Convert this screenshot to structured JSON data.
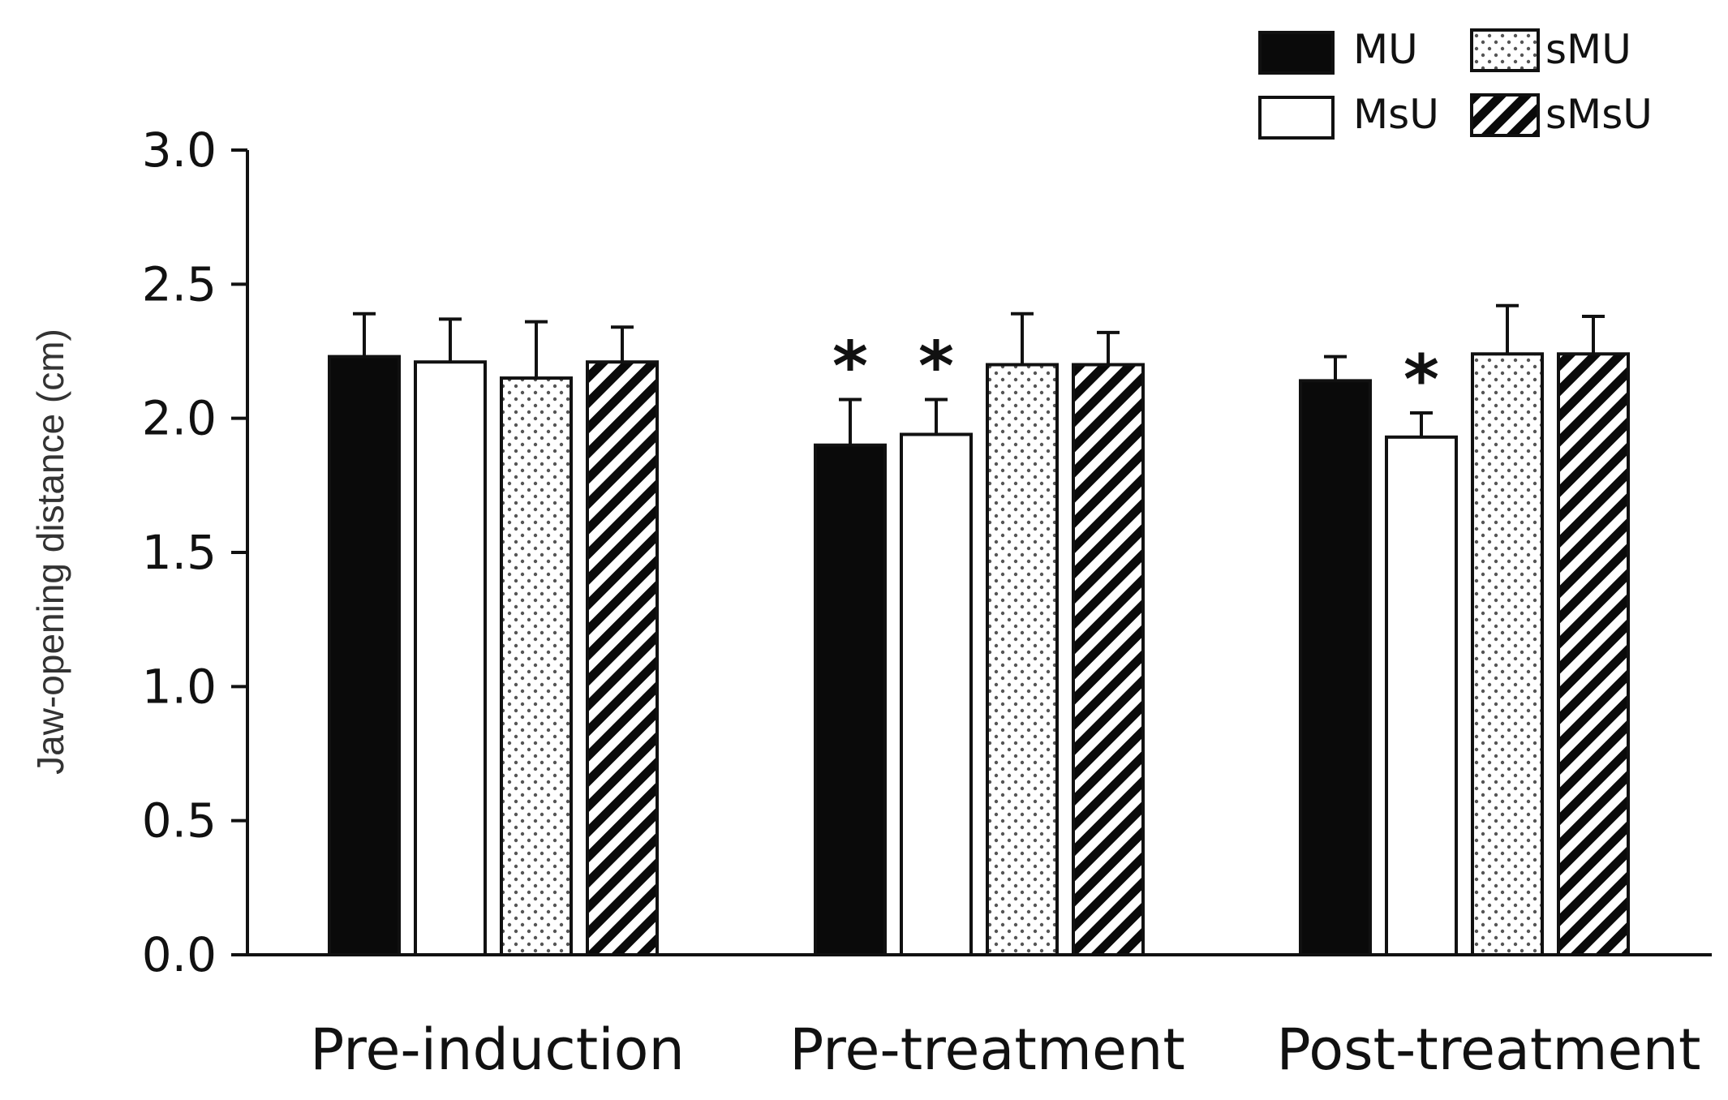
{
  "chart_data": {
    "type": "bar",
    "title": "",
    "xlabel": "",
    "ylabel": "Jaw-opening distance (cm)",
    "ylim": [
      0,
      3.0
    ],
    "yticks": [
      0.0,
      0.5,
      1.0,
      1.5,
      2.0,
      2.5,
      3.0
    ],
    "ytick_labels": [
      "0.0",
      "0.5",
      "1.0",
      "1.5",
      "2.0",
      "2.5",
      "3.0"
    ],
    "categories": [
      "Pre-induction",
      "Pre-treatment",
      "Post-treatment"
    ],
    "series": [
      {
        "name": "MU",
        "pattern": "solid-black",
        "values": [
          2.23,
          1.9,
          2.14
        ],
        "errors": [
          0.16,
          0.17,
          0.09
        ],
        "significant": [
          false,
          true,
          false
        ]
      },
      {
        "name": "MsU",
        "pattern": "white",
        "values": [
          2.21,
          1.94,
          1.93
        ],
        "errors": [
          0.16,
          0.13,
          0.09
        ],
        "significant": [
          false,
          true,
          true
        ]
      },
      {
        "name": "sMU",
        "pattern": "dotted",
        "values": [
          2.15,
          2.2,
          2.24
        ],
        "errors": [
          0.21,
          0.19,
          0.18
        ],
        "significant": [
          false,
          false,
          false
        ]
      },
      {
        "name": "sMsU",
        "pattern": "diagonal-hatch",
        "values": [
          2.21,
          2.2,
          2.24
        ],
        "errors": [
          0.13,
          0.12,
          0.14
        ],
        "significant": [
          false,
          false,
          false
        ]
      }
    ],
    "significance_marker": "*",
    "legend_position": "top-right",
    "grid": false
  },
  "colors": {
    "axis": "#111111",
    "bar_dark": "#0a0a0a",
    "bar_light": "#ffffff",
    "dot": "#555555"
  }
}
